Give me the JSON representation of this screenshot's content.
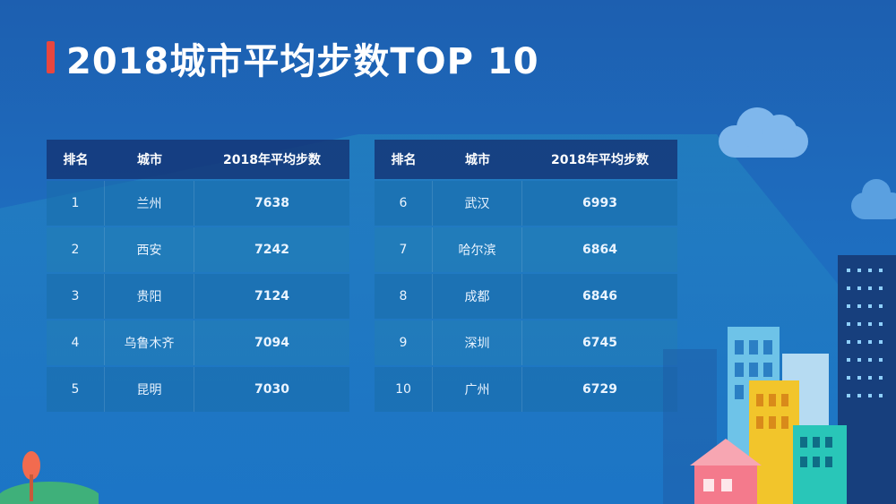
{
  "title": "2018城市平均步数TOP 10",
  "chart_data": {
    "type": "table",
    "columns": [
      "排名",
      "城市",
      "2018年平均步数"
    ],
    "tables": [
      {
        "rows": [
          {
            "rank": "1",
            "city": "兰州",
            "steps": "7638"
          },
          {
            "rank": "2",
            "city": "西安",
            "steps": "7242"
          },
          {
            "rank": "3",
            "city": "贵阳",
            "steps": "7124"
          },
          {
            "rank": "4",
            "city": "乌鲁木齐",
            "steps": "7094"
          },
          {
            "rank": "5",
            "city": "昆明",
            "steps": "7030"
          }
        ]
      },
      {
        "rows": [
          {
            "rank": "6",
            "city": "武汉",
            "steps": "6993"
          },
          {
            "rank": "7",
            "city": "哈尔滨",
            "steps": "6864"
          },
          {
            "rank": "8",
            "city": "成都",
            "steps": "6846"
          },
          {
            "rank": "9",
            "city": "深圳",
            "steps": "6745"
          },
          {
            "rank": "10",
            "city": "广州",
            "steps": "6729"
          }
        ]
      }
    ]
  },
  "colors": {
    "title_accent": "#e8463f",
    "header_bg": "#14377a",
    "background": "#1e6dbf"
  }
}
